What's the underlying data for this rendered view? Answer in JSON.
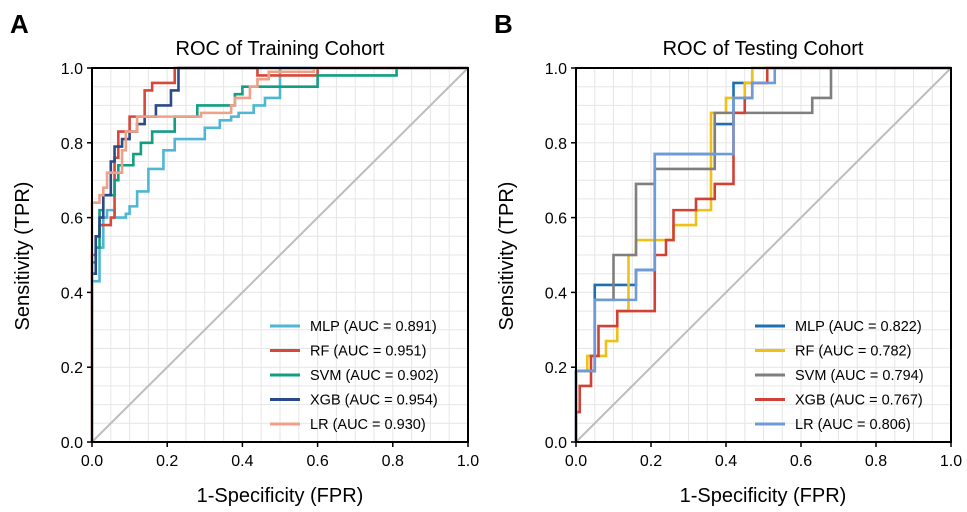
{
  "chart_data": [
    {
      "panel": "A",
      "type": "line",
      "title": "ROC of Training Cohort",
      "xlabel": "1-Specificity (FPR)",
      "ylabel": "Sensitivity (TPR)",
      "xlim": [
        0,
        1
      ],
      "ylim": [
        0,
        1
      ],
      "xticks": [
        "0.0",
        "0.2",
        "0.4",
        "0.6",
        "0.8",
        "1.0"
      ],
      "yticks": [
        "0.0",
        "0.2",
        "0.4",
        "0.6",
        "0.8",
        "1.0"
      ],
      "grid": true,
      "legend_position": "bottom-right",
      "diagonal_color": "#bdbdbd",
      "series": [
        {
          "name": "MLP (AUC = 0.891)",
          "color": "#4fb6d3",
          "points": [
            [
              0,
              0
            ],
            [
              0,
              0.43
            ],
            [
              0.02,
              0.43
            ],
            [
              0.02,
              0.52
            ],
            [
              0.03,
              0.52
            ],
            [
              0.03,
              0.6
            ],
            [
              0.04,
              0.6
            ],
            [
              0.04,
              0.62
            ],
            [
              0.06,
              0.62
            ],
            [
              0.06,
              0.6
            ],
            [
              0.09,
              0.6
            ],
            [
              0.09,
              0.61
            ],
            [
              0.1,
              0.61
            ],
            [
              0.1,
              0.63
            ],
            [
              0.12,
              0.63
            ],
            [
              0.12,
              0.67
            ],
            [
              0.15,
              0.67
            ],
            [
              0.15,
              0.73
            ],
            [
              0.19,
              0.73
            ],
            [
              0.19,
              0.78
            ],
            [
              0.22,
              0.78
            ],
            [
              0.22,
              0.81
            ],
            [
              0.3,
              0.81
            ],
            [
              0.3,
              0.84
            ],
            [
              0.34,
              0.84
            ],
            [
              0.34,
              0.86
            ],
            [
              0.37,
              0.86
            ],
            [
              0.37,
              0.87
            ],
            [
              0.39,
              0.87
            ],
            [
              0.39,
              0.88
            ],
            [
              0.43,
              0.88
            ],
            [
              0.43,
              0.9
            ],
            [
              0.46,
              0.9
            ],
            [
              0.46,
              0.92
            ],
            [
              0.5,
              0.92
            ],
            [
              0.5,
              1
            ],
            [
              1,
              1
            ]
          ]
        },
        {
          "name": "RF (AUC = 0.951)",
          "color": "#d6493a",
          "points": [
            [
              0,
              0
            ],
            [
              0,
              0.5
            ],
            [
              0.01,
              0.5
            ],
            [
              0.01,
              0.55
            ],
            [
              0.02,
              0.55
            ],
            [
              0.02,
              0.58
            ],
            [
              0.05,
              0.58
            ],
            [
              0.05,
              0.6
            ],
            [
              0.06,
              0.6
            ],
            [
              0.06,
              0.76
            ],
            [
              0.07,
              0.76
            ],
            [
              0.07,
              0.83
            ],
            [
              0.1,
              0.83
            ],
            [
              0.1,
              0.87
            ],
            [
              0.14,
              0.87
            ],
            [
              0.14,
              0.94
            ],
            [
              0.16,
              0.94
            ],
            [
              0.16,
              0.96
            ],
            [
              0.22,
              0.96
            ],
            [
              0.22,
              1
            ],
            [
              0.44,
              1
            ],
            [
              0.44,
              0.98
            ],
            [
              0.6,
              0.98
            ],
            [
              0.6,
              1
            ],
            [
              1,
              1
            ]
          ]
        },
        {
          "name": "SVM (AUC = 0.902)",
          "color": "#129e83",
          "points": [
            [
              0,
              0
            ],
            [
              0,
              0.48
            ],
            [
              0.01,
              0.48
            ],
            [
              0.01,
              0.52
            ],
            [
              0.02,
              0.52
            ],
            [
              0.02,
              0.62
            ],
            [
              0.03,
              0.62
            ],
            [
              0.03,
              0.66
            ],
            [
              0.06,
              0.66
            ],
            [
              0.06,
              0.7
            ],
            [
              0.07,
              0.7
            ],
            [
              0.07,
              0.74
            ],
            [
              0.11,
              0.74
            ],
            [
              0.11,
              0.77
            ],
            [
              0.13,
              0.77
            ],
            [
              0.13,
              0.8
            ],
            [
              0.16,
              0.8
            ],
            [
              0.16,
              0.83
            ],
            [
              0.22,
              0.83
            ],
            [
              0.22,
              0.87
            ],
            [
              0.28,
              0.87
            ],
            [
              0.28,
              0.9
            ],
            [
              0.38,
              0.9
            ],
            [
              0.38,
              0.93
            ],
            [
              0.4,
              0.93
            ],
            [
              0.4,
              0.95
            ],
            [
              0.6,
              0.95
            ],
            [
              0.6,
              0.98
            ],
            [
              0.81,
              0.98
            ],
            [
              0.81,
              1
            ],
            [
              1,
              1
            ]
          ]
        },
        {
          "name": "XGB (AUC = 0.954)",
          "color": "#2b4a8a",
          "points": [
            [
              0,
              0
            ],
            [
              0,
              0.45
            ],
            [
              0.01,
              0.45
            ],
            [
              0.01,
              0.55
            ],
            [
              0.02,
              0.55
            ],
            [
              0.02,
              0.6
            ],
            [
              0.03,
              0.6
            ],
            [
              0.03,
              0.66
            ],
            [
              0.05,
              0.66
            ],
            [
              0.05,
              0.75
            ],
            [
              0.06,
              0.75
            ],
            [
              0.06,
              0.79
            ],
            [
              0.08,
              0.79
            ],
            [
              0.08,
              0.81
            ],
            [
              0.1,
              0.81
            ],
            [
              0.1,
              0.83
            ],
            [
              0.12,
              0.83
            ],
            [
              0.12,
              0.85
            ],
            [
              0.14,
              0.85
            ],
            [
              0.14,
              0.87
            ],
            [
              0.17,
              0.87
            ],
            [
              0.17,
              0.9
            ],
            [
              0.21,
              0.9
            ],
            [
              0.21,
              0.94
            ],
            [
              0.23,
              0.94
            ],
            [
              0.23,
              1
            ],
            [
              1,
              1
            ]
          ]
        },
        {
          "name": "LR (AUC = 0.930)",
          "color": "#eea088",
          "points": [
            [
              0,
              0
            ],
            [
              0,
              0.64
            ],
            [
              0.02,
              0.64
            ],
            [
              0.02,
              0.66
            ],
            [
              0.03,
              0.66
            ],
            [
              0.03,
              0.68
            ],
            [
              0.04,
              0.68
            ],
            [
              0.04,
              0.72
            ],
            [
              0.08,
              0.72
            ],
            [
              0.08,
              0.78
            ],
            [
              0.09,
              0.78
            ],
            [
              0.09,
              0.83
            ],
            [
              0.12,
              0.83
            ],
            [
              0.12,
              0.87
            ],
            [
              0.29,
              0.87
            ],
            [
              0.29,
              0.88
            ],
            [
              0.37,
              0.88
            ],
            [
              0.37,
              0.9
            ],
            [
              0.38,
              0.9
            ],
            [
              0.38,
              0.92
            ],
            [
              0.42,
              0.92
            ],
            [
              0.42,
              0.95
            ],
            [
              0.44,
              0.95
            ],
            [
              0.44,
              0.97
            ],
            [
              0.47,
              0.97
            ],
            [
              0.47,
              0.99
            ],
            [
              0.59,
              0.99
            ],
            [
              0.59,
              1
            ],
            [
              1,
              1
            ]
          ]
        }
      ]
    },
    {
      "panel": "B",
      "type": "line",
      "title": "ROC of Testing Cohort",
      "xlabel": "1-Specificity (FPR)",
      "ylabel": "Sensitivity (TPR)",
      "xlim": [
        0,
        1
      ],
      "ylim": [
        0,
        1
      ],
      "xticks": [
        "0.0",
        "0.2",
        "0.4",
        "0.6",
        "0.8",
        "1.0"
      ],
      "yticks": [
        "0.0",
        "0.2",
        "0.4",
        "0.6",
        "0.8",
        "1.0"
      ],
      "grid": true,
      "legend_position": "bottom-right",
      "diagonal_color": "#bdbdbd",
      "series": [
        {
          "name": "MLP (AUC = 0.822)",
          "color": "#1f6fb5",
          "points": [
            [
              0,
              0
            ],
            [
              0,
              0.19
            ],
            [
              0.05,
              0.19
            ],
            [
              0.05,
              0.42
            ],
            [
              0.16,
              0.42
            ],
            [
              0.16,
              0.46
            ],
            [
              0.21,
              0.46
            ],
            [
              0.21,
              0.77
            ],
            [
              0.37,
              0.77
            ],
            [
              0.37,
              0.85
            ],
            [
              0.42,
              0.85
            ],
            [
              0.42,
              0.96
            ],
            [
              0.47,
              0.96
            ],
            [
              0.47,
              1
            ],
            [
              1,
              1
            ]
          ]
        },
        {
          "name": "RF (AUC = 0.782)",
          "color": "#efc015",
          "points": [
            [
              0,
              0
            ],
            [
              0,
              0.19
            ],
            [
              0.03,
              0.19
            ],
            [
              0.03,
              0.23
            ],
            [
              0.08,
              0.23
            ],
            [
              0.08,
              0.27
            ],
            [
              0.11,
              0.27
            ],
            [
              0.11,
              0.35
            ],
            [
              0.14,
              0.35
            ],
            [
              0.14,
              0.5
            ],
            [
              0.16,
              0.5
            ],
            [
              0.16,
              0.54
            ],
            [
              0.26,
              0.54
            ],
            [
              0.26,
              0.58
            ],
            [
              0.32,
              0.58
            ],
            [
              0.32,
              0.62
            ],
            [
              0.36,
              0.62
            ],
            [
              0.36,
              0.88
            ],
            [
              0.4,
              0.88
            ],
            [
              0.4,
              0.92
            ],
            [
              0.45,
              0.92
            ],
            [
              0.45,
              0.96
            ],
            [
              0.47,
              0.96
            ],
            [
              0.47,
              1
            ],
            [
              1,
              1
            ]
          ]
        },
        {
          "name": "SVM (AUC = 0.794)",
          "color": "#7f7f7f",
          "points": [
            [
              0,
              0
            ],
            [
              0,
              0.19
            ],
            [
              0.05,
              0.19
            ],
            [
              0.05,
              0.38
            ],
            [
              0.1,
              0.38
            ],
            [
              0.1,
              0.5
            ],
            [
              0.16,
              0.5
            ],
            [
              0.16,
              0.69
            ],
            [
              0.21,
              0.69
            ],
            [
              0.21,
              0.73
            ],
            [
              0.37,
              0.73
            ],
            [
              0.37,
              0.88
            ],
            [
              0.63,
              0.88
            ],
            [
              0.63,
              0.92
            ],
            [
              0.68,
              0.92
            ],
            [
              0.68,
              1
            ],
            [
              1,
              1
            ]
          ]
        },
        {
          "name": "XGB (AUC = 0.767)",
          "color": "#d04236",
          "points": [
            [
              0,
              0
            ],
            [
              0,
              0.08
            ],
            [
              0.01,
              0.08
            ],
            [
              0.01,
              0.15
            ],
            [
              0.04,
              0.15
            ],
            [
              0.04,
              0.23
            ],
            [
              0.06,
              0.23
            ],
            [
              0.06,
              0.31
            ],
            [
              0.11,
              0.31
            ],
            [
              0.11,
              0.35
            ],
            [
              0.21,
              0.35
            ],
            [
              0.21,
              0.5
            ],
            [
              0.24,
              0.5
            ],
            [
              0.24,
              0.54
            ],
            [
              0.26,
              0.54
            ],
            [
              0.26,
              0.62
            ],
            [
              0.32,
              0.62
            ],
            [
              0.32,
              0.65
            ],
            [
              0.37,
              0.65
            ],
            [
              0.37,
              0.69
            ],
            [
              0.42,
              0.69
            ],
            [
              0.42,
              0.88
            ],
            [
              0.45,
              0.88
            ],
            [
              0.45,
              0.92
            ],
            [
              0.47,
              0.92
            ],
            [
              0.47,
              0.96
            ],
            [
              0.51,
              0.96
            ],
            [
              0.51,
              1
            ],
            [
              1,
              1
            ]
          ]
        },
        {
          "name": "LR (AUC = 0.806)",
          "color": "#6e9ad8",
          "points": [
            [
              0,
              0
            ],
            [
              0,
              0.19
            ],
            [
              0.05,
              0.19
            ],
            [
              0.05,
              0.38
            ],
            [
              0.16,
              0.38
            ],
            [
              0.16,
              0.46
            ],
            [
              0.21,
              0.46
            ],
            [
              0.21,
              0.77
            ],
            [
              0.42,
              0.77
            ],
            [
              0.42,
              0.92
            ],
            [
              0.47,
              0.92
            ],
            [
              0.47,
              0.96
            ],
            [
              0.53,
              0.96
            ],
            [
              0.53,
              1
            ],
            [
              1,
              1
            ]
          ]
        }
      ]
    }
  ],
  "panels": {
    "A": {
      "label": "A"
    },
    "B": {
      "label": "B"
    }
  }
}
